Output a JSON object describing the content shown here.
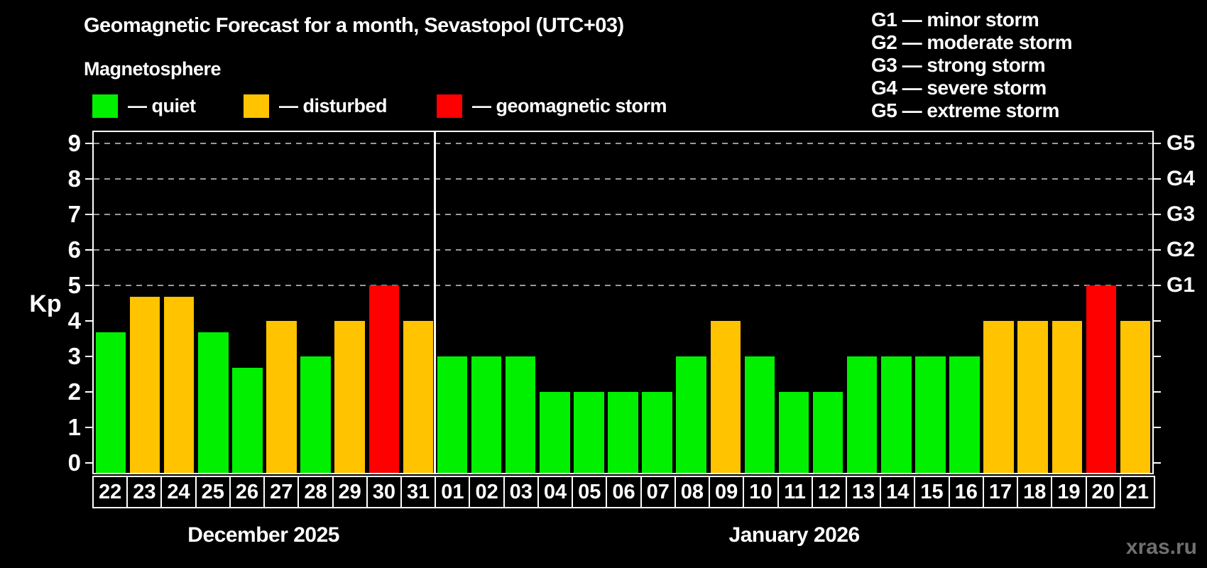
{
  "title": "Geomagnetic Forecast for a month, Sevastopol (UTC+03)",
  "subtitle": "Magnetosphere",
  "legend": {
    "items": [
      {
        "name": "quiet",
        "color": "#00f000",
        "label": "— quiet"
      },
      {
        "name": "disturbed",
        "color": "#ffc300",
        "label": "— disturbed"
      },
      {
        "name": "storm",
        "color": "#ff0000",
        "label": "— geomagnetic storm"
      }
    ]
  },
  "storm_scale_legend": {
    "lines": [
      "G1 — minor storm",
      "G2 — moderate storm",
      "G3 — strong storm",
      "G4 — severe storm",
      "G5 — extreme storm"
    ]
  },
  "y_axis": {
    "label": "Kp",
    "ticks": [
      0,
      1,
      2,
      3,
      4,
      5,
      6,
      7,
      8,
      9
    ]
  },
  "right_axis": {
    "labels": [
      {
        "level": 5,
        "text": "G1"
      },
      {
        "level": 6,
        "text": "G2"
      },
      {
        "level": 7,
        "text": "G3"
      },
      {
        "level": 8,
        "text": "G4"
      },
      {
        "level": 9,
        "text": "G5"
      }
    ]
  },
  "watermark": "xras.ru",
  "colors": {
    "background": "#000000",
    "frame": "#ffffff",
    "gridline": "#9a9a9a",
    "quiet": "#00f000",
    "disturbed": "#ffc300",
    "storm": "#ff0000",
    "watermark": "#707070"
  },
  "chart_data": {
    "type": "bar",
    "title": "Geomagnetic Forecast for a month, Sevastopol (UTC+03)",
    "xlabel": "",
    "ylabel": "Kp",
    "ylim": [
      0,
      9.35
    ],
    "grid": "dashed horizontal at storm levels only",
    "gridlines_at": [
      5,
      6,
      7,
      8,
      9
    ],
    "right_axis_labels": {
      "5": "G1",
      "6": "G2",
      "7": "G3",
      "8": "G4",
      "9": "G5"
    },
    "legend_position": "top",
    "status_colors": {
      "quiet": "#00f000",
      "disturbed": "#ffc300",
      "storm": "#ff0000"
    },
    "series": [
      {
        "month": "December 2025",
        "points": [
          {
            "day": "22",
            "kp": 3.67,
            "status": "quiet"
          },
          {
            "day": "23",
            "kp": 4.67,
            "status": "disturbed"
          },
          {
            "day": "24",
            "kp": 4.67,
            "status": "disturbed"
          },
          {
            "day": "25",
            "kp": 3.67,
            "status": "quiet"
          },
          {
            "day": "26",
            "kp": 2.67,
            "status": "quiet"
          },
          {
            "day": "27",
            "kp": 4,
            "status": "disturbed"
          },
          {
            "day": "28",
            "kp": 3,
            "status": "quiet"
          },
          {
            "day": "29",
            "kp": 4,
            "status": "disturbed"
          },
          {
            "day": "30",
            "kp": 5,
            "status": "storm"
          },
          {
            "day": "31",
            "kp": 4,
            "status": "disturbed"
          }
        ]
      },
      {
        "month": "January 2026",
        "points": [
          {
            "day": "01",
            "kp": 3,
            "status": "quiet"
          },
          {
            "day": "02",
            "kp": 3,
            "status": "quiet"
          },
          {
            "day": "03",
            "kp": 3,
            "status": "quiet"
          },
          {
            "day": "04",
            "kp": 2,
            "status": "quiet"
          },
          {
            "day": "05",
            "kp": 2,
            "status": "quiet"
          },
          {
            "day": "06",
            "kp": 2,
            "status": "quiet"
          },
          {
            "day": "07",
            "kp": 2,
            "status": "quiet"
          },
          {
            "day": "08",
            "kp": 3,
            "status": "quiet"
          },
          {
            "day": "09",
            "kp": 4,
            "status": "disturbed"
          },
          {
            "day": "10",
            "kp": 3,
            "status": "quiet"
          },
          {
            "day": "11",
            "kp": 2,
            "status": "quiet"
          },
          {
            "day": "12",
            "kp": 2,
            "status": "quiet"
          },
          {
            "day": "13",
            "kp": 3,
            "status": "quiet"
          },
          {
            "day": "14",
            "kp": 3,
            "status": "quiet"
          },
          {
            "day": "15",
            "kp": 3,
            "status": "quiet"
          },
          {
            "day": "16",
            "kp": 3,
            "status": "quiet"
          },
          {
            "day": "17",
            "kp": 4,
            "status": "disturbed"
          },
          {
            "day": "18",
            "kp": 4,
            "status": "disturbed"
          },
          {
            "day": "19",
            "kp": 4,
            "status": "disturbed"
          },
          {
            "day": "20",
            "kp": 5,
            "status": "storm"
          },
          {
            "day": "21",
            "kp": 4,
            "status": "disturbed"
          }
        ]
      }
    ]
  }
}
